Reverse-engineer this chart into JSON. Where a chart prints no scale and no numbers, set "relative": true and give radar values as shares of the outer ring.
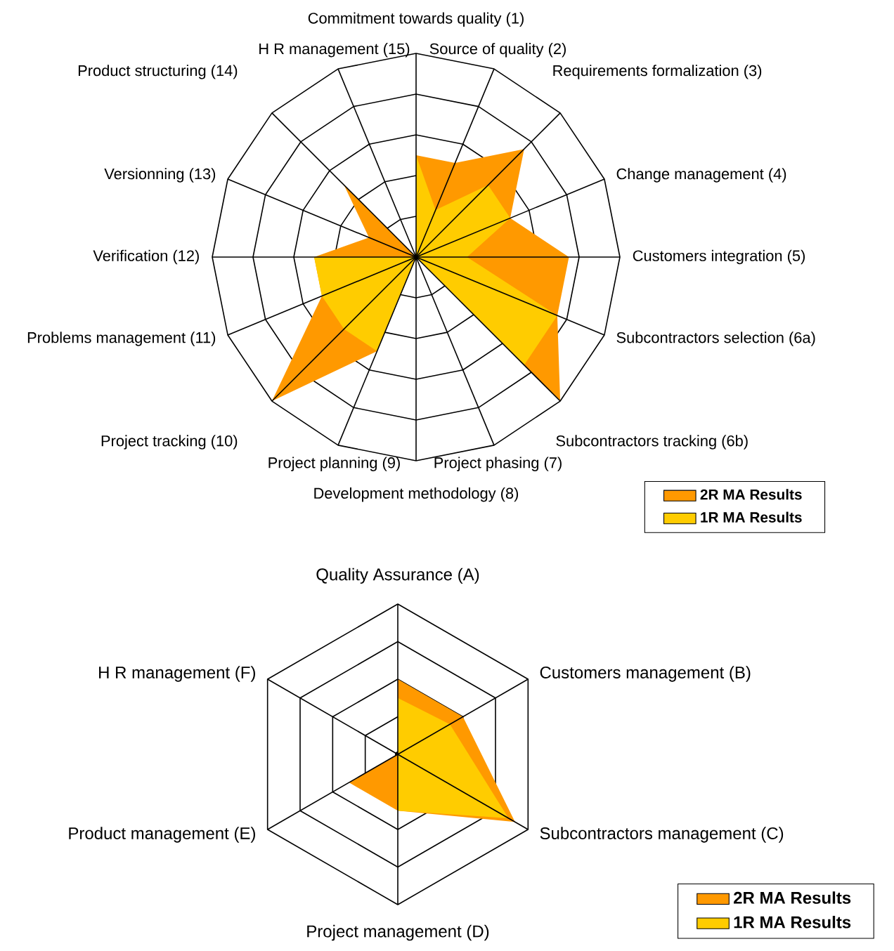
{
  "chart_data": [
    {
      "type": "radar",
      "relative": true,
      "grid": true,
      "legend": "bottom right",
      "marker": "none",
      "categories": [
        "Commitment towards quality (1)",
        "Source of quality (2)",
        "Requirements formalization (3)",
        "Change management (4)",
        "Customers integration (5)",
        "Subcontractors selection (6a)",
        "Subcontractors tracking (6b)",
        "Project phasing (7)",
        "Development methodology (8)",
        "Project planning (9)",
        "Project tracking (10)",
        "Problems management (11)",
        "Verification (12)",
        "Versionning (13)",
        "Product structuring (14)",
        "H R management (15)"
      ],
      "series": [
        {
          "name": "2R MA Results",
          "color": "#ff9900",
          "values": [
            0.5,
            0.5,
            0.75,
            0.5,
            0.75,
            0.75,
            1.0,
            0,
            0,
            0.5,
            1.0,
            0.5,
            0.5,
            0.25,
            0.5,
            0
          ]
        },
        {
          "name": "1R MA Results",
          "color": "#ffcc00",
          "values": [
            0.5,
            0.25,
            0.5,
            0.5,
            0.25,
            0.75,
            0.75,
            0,
            0,
            0.5,
            0.5,
            0.5,
            0.5,
            0,
            0,
            0
          ]
        }
      ]
    },
    {
      "type": "radar",
      "relative": true,
      "grid": true,
      "legend": "bottom right",
      "marker": "none",
      "categories": [
        "Quality Assurance (A)",
        "Customers management (B)",
        "Subcontractors management (C)",
        "Project management (D)",
        "Product management (E)",
        "H R management (F)"
      ],
      "series": [
        {
          "name": "2R MA Results",
          "color": "#ff9900",
          "values": [
            0.5,
            0.5,
            0.9,
            0.375,
            0.375,
            0
          ]
        },
        {
          "name": "1R MA Results",
          "color": "#ffcc00",
          "values": [
            0.375,
            0.4,
            0.85,
            0.375,
            0,
            0
          ]
        }
      ]
    }
  ]
}
